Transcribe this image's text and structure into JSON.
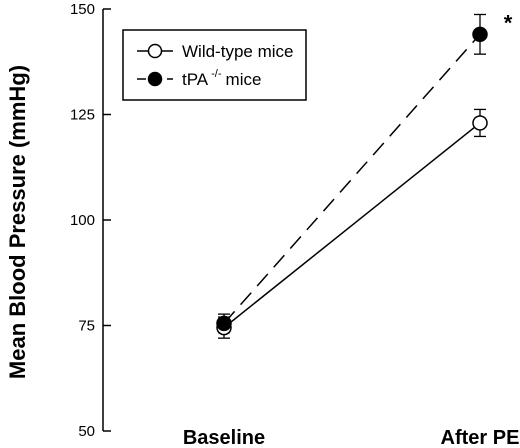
{
  "chart_data": {
    "type": "line",
    "categories": [
      "Baseline",
      "After PE"
    ],
    "ylabel": "Mean Blood Pressure (mmHg)",
    "ylim": [
      50,
      150
    ],
    "yticks": [
      50,
      75,
      100,
      125,
      150
    ],
    "grid": false,
    "legend_position": "top-left",
    "series": [
      {
        "name": "Wild-type mice",
        "values": [
          74.5,
          123
        ],
        "errors": [
          2.5,
          3.2
        ],
        "marker": "open-circle",
        "line_style": "solid"
      },
      {
        "name": "tPA",
        "name_superscript": "-/-",
        "name_suffix": "mice",
        "values": [
          75.5,
          144
        ],
        "errors": [
          2.2,
          4.7
        ],
        "marker": "filled-circle",
        "line_style": "dashed"
      }
    ],
    "annotations": [
      {
        "text": "*",
        "category": "After PE",
        "value": 147
      }
    ]
  }
}
